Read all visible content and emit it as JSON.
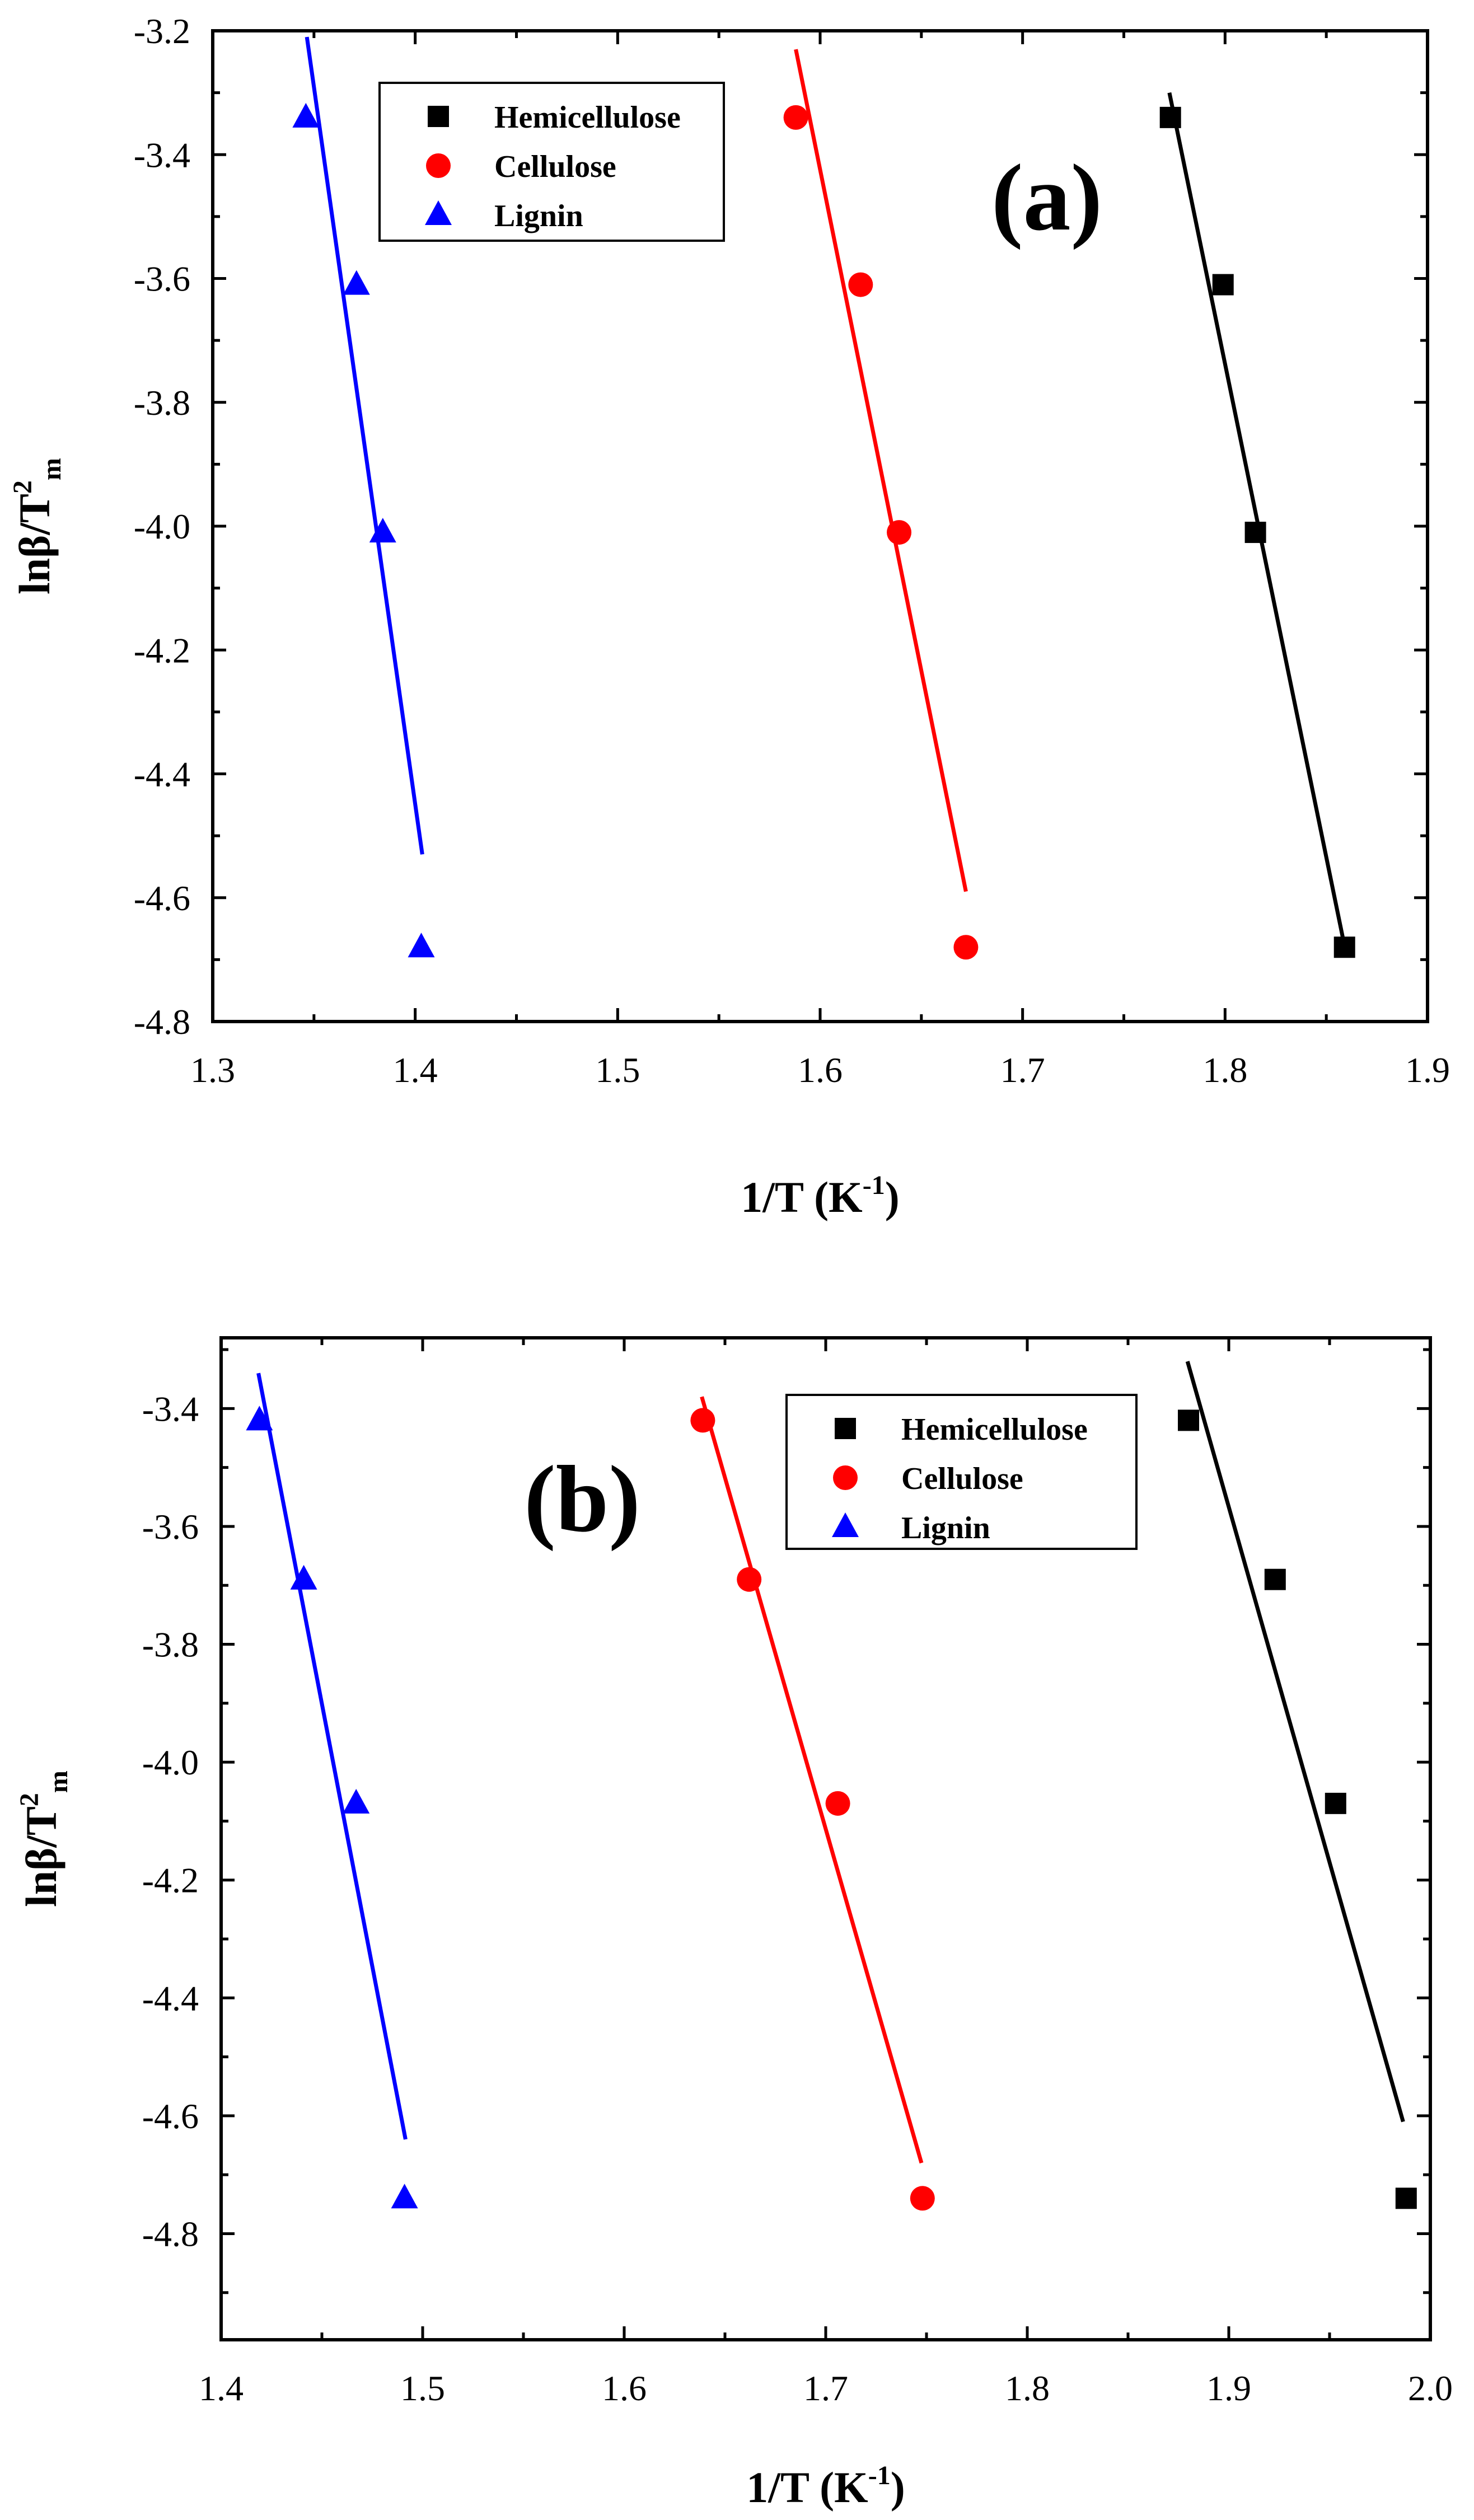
{
  "chart_data": [
    {
      "type": "scatter",
      "panel_label": "(a)",
      "xlabel": {
        "main": "1/T (K",
        "sup": "-1",
        "close": ")"
      },
      "ylabel": {
        "main": "lnβ/T",
        "sup": "2",
        "sub": "m"
      },
      "xlim": [
        1.3,
        1.9
      ],
      "ylim": [
        -4.8,
        -3.2
      ],
      "xticks": [
        "1.3",
        "1.4",
        "1.5",
        "1.6",
        "1.7",
        "1.8",
        "1.9"
      ],
      "yticks": [
        "-4.8",
        "-4.6",
        "-4.4",
        "-4.2",
        "-4.0",
        "-3.8",
        "-3.6",
        "-3.4",
        "-3.2"
      ],
      "legend_position": "top-center",
      "series": [
        {
          "name": "Hemicellulose",
          "color": "#000000",
          "marker": "square",
          "x": [
            1.773,
            1.799,
            1.815,
            1.859
          ],
          "y": [
            -3.34,
            -3.61,
            -4.01,
            -4.68
          ],
          "fit": {
            "x": [
              1.7725,
              1.8585
            ],
            "y": [
              -3.3,
              -4.67
            ]
          }
        },
        {
          "name": "Cellulose",
          "color": "#ff0000",
          "marker": "circle",
          "x": [
            1.588,
            1.62,
            1.639,
            1.672
          ],
          "y": [
            -3.34,
            -3.61,
            -4.01,
            -4.68
          ],
          "fit": {
            "x": [
              1.588,
              1.672
            ],
            "y": [
              -3.23,
              -4.59
            ]
          }
        },
        {
          "name": "Lignin",
          "color": "#0000ff",
          "marker": "triangle",
          "x": [
            1.346,
            1.371,
            1.384,
            1.403
          ],
          "y": [
            -3.34,
            -3.61,
            -4.01,
            -4.68
          ],
          "fit": {
            "x": [
              1.3465,
              1.4035
            ],
            "y": [
              -3.21,
              -4.53
            ]
          }
        }
      ]
    },
    {
      "type": "scatter",
      "panel_label": "(b)",
      "xlabel": {
        "main": "1/T (K",
        "sup": "-1",
        "close": ")"
      },
      "ylabel": {
        "main": "lnβ/T",
        "sup": "2",
        "sub": "m"
      },
      "xlim": [
        1.4,
        2.0
      ],
      "ylim": [
        -4.98,
        -3.28
      ],
      "xticks": [
        "1.4",
        "1.5",
        "1.6",
        "1.7",
        "1.8",
        "1.9",
        "2.0"
      ],
      "yticks": [
        "-4.8",
        "-4.6",
        "-4.4",
        "-4.2",
        "-4.0",
        "-3.8",
        "-3.6",
        "-3.4"
      ],
      "legend_position": "top-right",
      "series": [
        {
          "name": "Hemicellulose",
          "color": "#000000",
          "marker": "square",
          "x": [
            1.88,
            1.923,
            1.953,
            1.988
          ],
          "y": [
            -3.42,
            -3.69,
            -4.07,
            -4.74
          ],
          "fit": {
            "x": [
              1.8795,
              1.9865
            ],
            "y": [
              -3.32,
              -4.61
            ]
          }
        },
        {
          "name": "Cellulose",
          "color": "#ff0000",
          "marker": "circle",
          "x": [
            1.639,
            1.662,
            1.706,
            1.748
          ],
          "y": [
            -3.42,
            -3.69,
            -4.07,
            -4.74
          ],
          "fit": {
            "x": [
              1.6385,
              1.7475
            ],
            "y": [
              -3.38,
              -4.68
            ]
          }
        },
        {
          "name": "Lignin",
          "color": "#0000ff",
          "marker": "triangle",
          "x": [
            1.419,
            1.441,
            1.467,
            1.491
          ],
          "y": [
            -3.42,
            -3.69,
            -4.07,
            -4.74
          ],
          "fit": {
            "x": [
              1.4185,
              1.4915
            ],
            "y": [
              -3.34,
              -4.64
            ]
          }
        }
      ]
    }
  ]
}
